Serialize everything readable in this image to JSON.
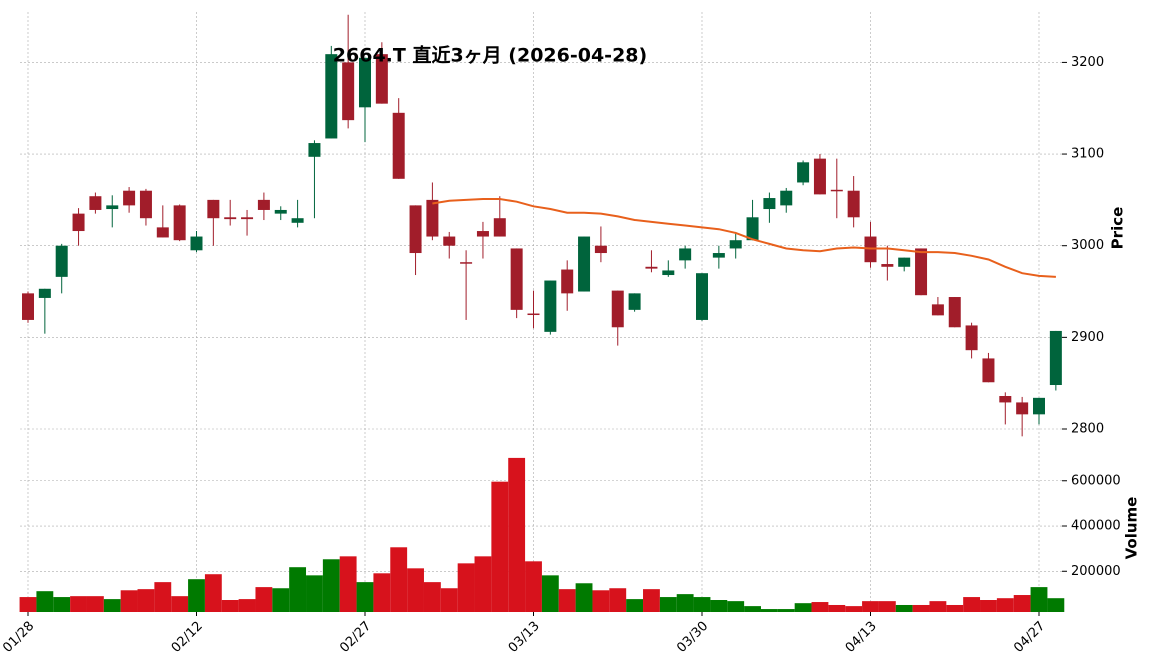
{
  "chart_data": {
    "type": "candlestick",
    "title": "2664.T  直近3ヶ月  (2026-04-28)",
    "ylabel": "Price",
    "volume_ylabel": "Volume",
    "categories": [
      "01/28",
      null,
      null,
      null,
      null,
      null,
      null,
      null,
      null,
      null,
      "02/12",
      null,
      null,
      null,
      null,
      null,
      null,
      null,
      null,
      null,
      "02/27",
      null,
      null,
      null,
      null,
      null,
      null,
      null,
      null,
      null,
      "03/13",
      null,
      null,
      null,
      null,
      null,
      null,
      null,
      null,
      null,
      "03/30",
      null,
      null,
      null,
      null,
      null,
      null,
      null,
      null,
      null,
      "04/13",
      null,
      null,
      null,
      null,
      null,
      null,
      null,
      null,
      null,
      "04/27",
      null
    ],
    "open": [
      2948,
      2943,
      2966,
      3035,
      3054,
      3040,
      3060,
      3060,
      3020,
      3044,
      2995,
      3050,
      3031,
      3031,
      3050,
      3035,
      3025,
      3097,
      3117,
      3200,
      3151,
      3209,
      3145,
      3044,
      3050,
      3010,
      2982,
      3016,
      3030,
      2997,
      2926,
      2906,
      2974,
      2950,
      3000,
      2951,
      2930,
      2977,
      2968,
      2984,
      2919,
      2987,
      2997,
      3006,
      3040,
      3044,
      3069,
      3095,
      3061,
      3060,
      3010,
      2980,
      2977,
      2997,
      2936,
      2944,
      2913,
      2877,
      2836,
      2829,
      2816,
      2848
    ],
    "high": [
      2950,
      2953,
      3002,
      3041,
      3058,
      3055,
      3064,
      3062,
      3044,
      3045,
      3016,
      3050,
      3050,
      3039,
      3058,
      3043,
      3050,
      3115,
      3218,
      3252,
      3205,
      3222,
      3161,
      3044,
      3069,
      3015,
      2995,
      3026,
      3054,
      2997,
      2951,
      2962,
      2984,
      3010,
      3021,
      2951,
      2948,
      2995,
      2984,
      3000,
      2970,
      3000,
      3015,
      3050,
      3058,
      3063,
      3093,
      3100,
      3095,
      3076,
      3026,
      3000,
      2987,
      2997,
      2944,
      2944,
      2916,
      2883,
      2840,
      2835,
      2834,
      2907
    ],
    "low": [
      2916,
      2904,
      2948,
      3000,
      3035,
      3020,
      3036,
      3022,
      3009,
      3005,
      2993,
      3000,
      3022,
      3011,
      3028,
      3028,
      3020,
      3030,
      3117,
      3128,
      3113,
      3155,
      3073,
      2968,
      3006,
      2986,
      2919,
      2986,
      3010,
      2921,
      2910,
      2903,
      2929,
      2950,
      2982,
      2891,
      2928,
      2971,
      2966,
      2975,
      2918,
      2975,
      2986,
      3006,
      3025,
      3036,
      3066,
      3056,
      3030,
      3020,
      2976,
      2962,
      2972,
      2946,
      2924,
      2911,
      2877,
      2851,
      2805,
      2792,
      2805,
      2842
    ],
    "close": [
      2919,
      2953,
      3000,
      3016,
      3039,
      3044,
      3044,
      3030,
      3009,
      3006,
      3010,
      3030,
      3029,
      3029,
      3039,
      3039,
      3030,
      3112,
      3209,
      3137,
      3205,
      3155,
      3073,
      2992,
      3010,
      3000,
      2981,
      3010,
      3010,
      2930,
      2925,
      2962,
      2948,
      3010,
      2992,
      2911,
      2948,
      2975,
      2973,
      2997,
      2970,
      2992,
      3006,
      3031,
      3052,
      3060,
      3091,
      3056,
      3060,
      3031,
      2982,
      2977,
      2987,
      2946,
      2924,
      2911,
      2886,
      2851,
      2829,
      2816,
      2834,
      2907
    ],
    "volume": [
      86000,
      112000,
      86000,
      90000,
      90000,
      77000,
      116000,
      121000,
      152000,
      90000,
      165000,
      187000,
      73000,
      77000,
      130000,
      125000,
      218000,
      182000,
      253000,
      266000,
      152000,
      191000,
      306000,
      213000,
      152000,
      125000,
      235000,
      266000,
      596000,
      701000,
      244000,
      182000,
      121000,
      147000,
      116000,
      125000,
      77000,
      121000,
      86000,
      99000,
      86000,
      73000,
      68000,
      46000,
      33000,
      33000,
      59000,
      64000,
      51000,
      46000,
      68000,
      68000,
      51000,
      51000,
      68000,
      51000,
      86000,
      73000,
      81000,
      95000,
      130000,
      81000
    ],
    "ma": {
      "color": "#e8601c",
      "values": [
        null,
        null,
        null,
        null,
        null,
        null,
        null,
        null,
        null,
        null,
        null,
        null,
        null,
        null,
        null,
        null,
        null,
        null,
        null,
        null,
        null,
        null,
        null,
        null,
        3046,
        3049,
        3050,
        3051,
        3051,
        3048,
        3043,
        3040,
        3036,
        3036,
        3035,
        3032,
        3028,
        3026,
        3024,
        3022,
        3020,
        3018,
        3014,
        3007,
        3002,
        2997,
        2995,
        2994,
        2997,
        2998,
        2997,
        2997,
        2995,
        2993,
        2993,
        2992,
        2989,
        2985,
        2977,
        2970,
        2967,
        2966
      ]
    },
    "up_color": "#00643c",
    "down_color": "#a11d2a",
    "volume_up_color": "#007a00",
    "volume_down_color": "#d7121c",
    "ylim": [
      2788,
      3255
    ],
    "yticks": [
      2800,
      2900,
      3000,
      3100,
      3200
    ],
    "volume_ylim": [
      20000,
      705000
    ],
    "volume_yticks": [
      200000,
      400000,
      600000
    ],
    "grid": true
  }
}
